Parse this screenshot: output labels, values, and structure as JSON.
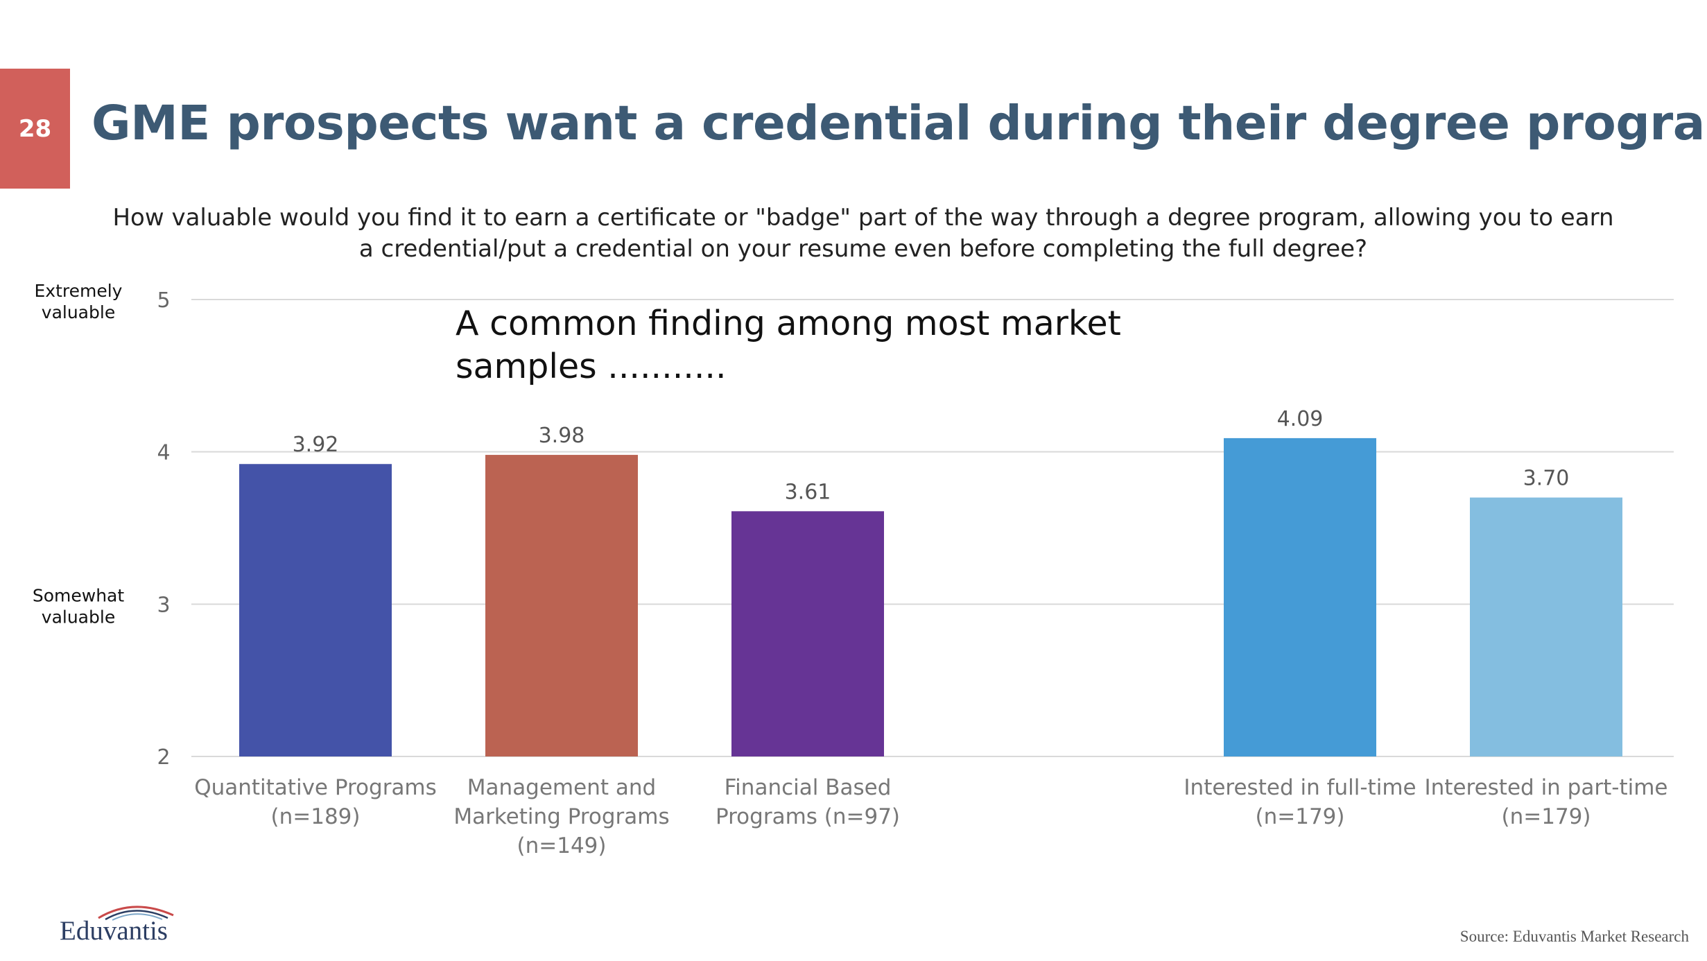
{
  "slide": {
    "page_number": "28",
    "title": "GME prospects want a credential during their degree program",
    "question": "How valuable would you find it to earn a certificate or \"badge\" part of the way through a degree program, allowing you to earn a credential/put a credential on your resume even before completing the full degree?",
    "annotation": "A common finding among most market samples ...........",
    "logo_text": "Eduvantis",
    "source": "Source: Eduvantis Market Research"
  },
  "colors": {
    "badge": "#d1605b",
    "title": "#3d5a74",
    "gridline": "#d9d9d9"
  },
  "chart_data": {
    "type": "bar",
    "ylim": [
      2,
      5
    ],
    "yticks": [
      "2",
      "3",
      "4",
      "5"
    ],
    "scale_labels": [
      {
        "value": 5,
        "lines": [
          "Extremely",
          "valuable"
        ]
      },
      {
        "value": 3,
        "lines": [
          "Somewhat",
          "valuable"
        ]
      }
    ],
    "grid": true,
    "bars": [
      {
        "category": [
          "Quantitative Programs",
          "(n=189)"
        ],
        "value": 3.92,
        "label": "3.92",
        "color": "#4453a8"
      },
      {
        "category": [
          "Management and",
          "Marketing Programs",
          "(n=149)"
        ],
        "value": 3.98,
        "label": "3.98",
        "color": "#bb6352"
      },
      {
        "category": [
          "Financial Based",
          "Programs (n=97)"
        ],
        "value": 3.61,
        "label": "3.61",
        "color": "#663495"
      },
      {
        "category": [
          "Interested in full-time",
          "(n=179)"
        ],
        "value": 4.09,
        "label": "4.09",
        "color": "#459bd6"
      },
      {
        "category": [
          "Interested in part-time",
          "(n=179)"
        ],
        "value": 3.7,
        "label": "3.70",
        "color": "#84bee0"
      }
    ]
  }
}
